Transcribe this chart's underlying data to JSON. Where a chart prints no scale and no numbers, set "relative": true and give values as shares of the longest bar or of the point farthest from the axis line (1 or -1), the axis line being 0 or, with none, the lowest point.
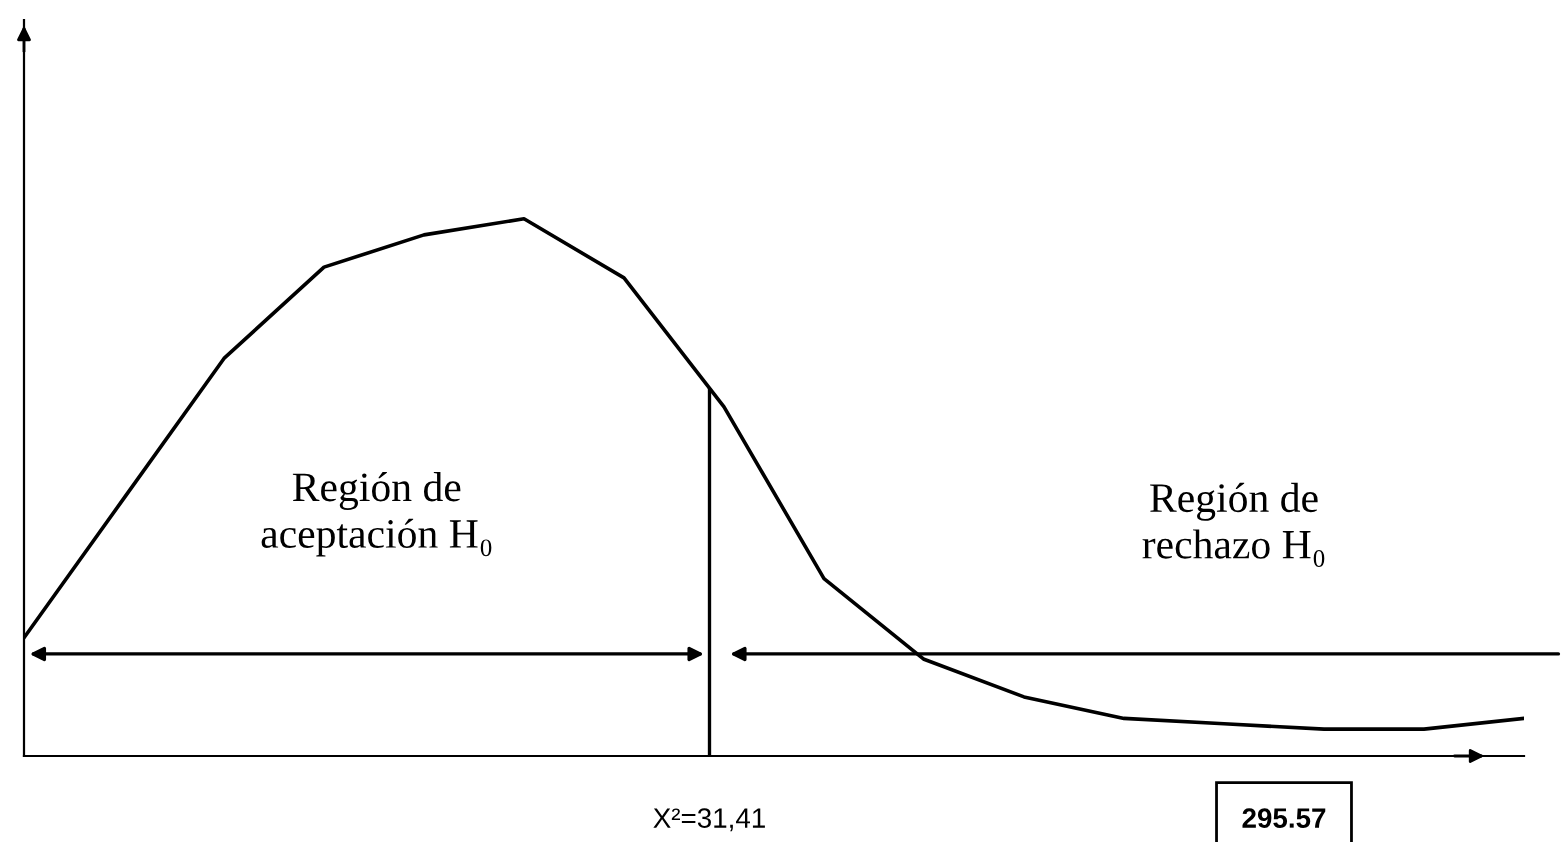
{
  "chart_data": {
    "type": "line",
    "relative": true,
    "categories": [
      null,
      null,
      null,
      null,
      null,
      null,
      null,
      null,
      null,
      null,
      null,
      null,
      null,
      null,
      null,
      null
    ],
    "series": [
      {
        "color": "#000000",
        "values": [
          0.22,
          0.48,
          0.74,
          0.91,
          0.97,
          1.0,
          0.89,
          0.65,
          0.33,
          0.18,
          0.11,
          0.07,
          0.06,
          0.05,
          0.05,
          0.07
        ]
      }
    ],
    "annotations": [
      "Región de aceptación H₀",
      "Región de rechazo H₀",
      "295.57",
      "X²=31,41"
    ],
    "marker": "none",
    "line_style": "solid",
    "grid": false,
    "legend": false
  }
}
